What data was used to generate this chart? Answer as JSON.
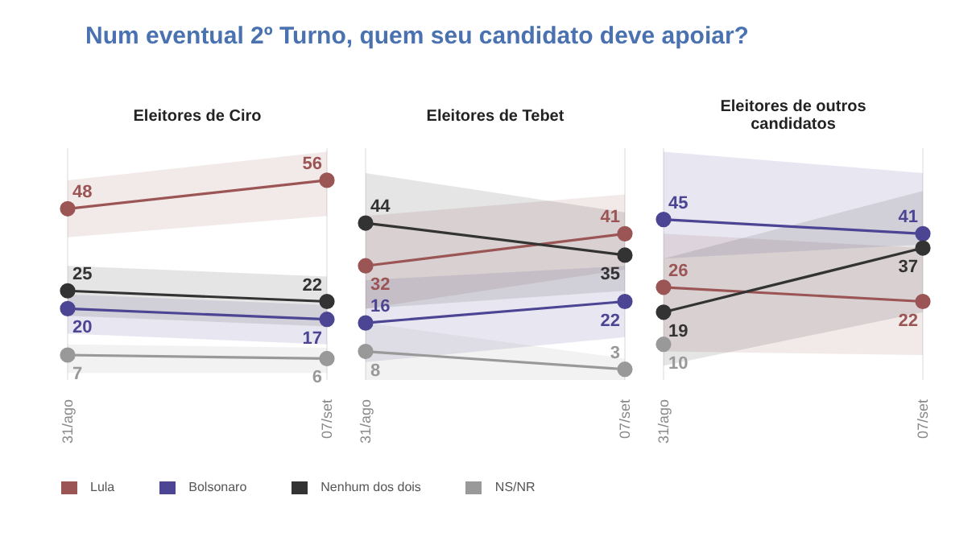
{
  "chart_data": [
    {
      "type": "line",
      "title": "Num eventual 2º Turno, quem seu candidato deve apoiar?",
      "subtitle": "Eleitores de Ciro",
      "categories": [
        "31/ago",
        "07/set"
      ],
      "ylim": [
        0,
        65
      ],
      "grid": "x",
      "marker": "circle",
      "data_labels": true,
      "legend": "bottom",
      "series": [
        {
          "name": "Lula",
          "color": "#9b5555",
          "values": [
            48,
            56
          ],
          "lower": [
            40,
            46
          ],
          "upper": [
            56,
            64
          ]
        },
        {
          "name": "Bolsonaro",
          "color": "#4b4593",
          "values": [
            20,
            17
          ],
          "lower": [
            13,
            10
          ],
          "upper": [
            24,
            21
          ]
        },
        {
          "name": "Nenhum dos dois",
          "color": "#333333",
          "values": [
            25,
            22
          ],
          "lower": [
            18,
            15
          ],
          "upper": [
            32,
            29
          ]
        },
        {
          "name": "NS/NR",
          "color": "#999999",
          "values": [
            7,
            6
          ],
          "lower": [
            2,
            2
          ],
          "upper": [
            10,
            9
          ]
        }
      ]
    },
    {
      "type": "line",
      "subtitle": "Eleitores de Tebet",
      "categories": [
        "31/ago",
        "07/set"
      ],
      "ylim": [
        0,
        65
      ],
      "grid": "x",
      "marker": "circle",
      "data_labels": true,
      "series": [
        {
          "color": "#9b5555",
          "values": [
            32,
            41
          ],
          "lower": [
            20,
            31
          ],
          "upper": [
            46,
            52
          ]
        },
        {
          "color": "#4b4593",
          "values": [
            16,
            22
          ],
          "lower": [
            5,
            12
          ],
          "upper": [
            28,
            32
          ]
        },
        {
          "color": "#333333",
          "values": [
            44,
            35
          ],
          "lower": [
            20,
            25
          ],
          "upper": [
            58,
            47
          ]
        },
        {
          "color": "#999999",
          "values": [
            8,
            3
          ],
          "lower": [
            0,
            0
          ],
          "upper": [
            16,
            6
          ]
        }
      ]
    },
    {
      "type": "line",
      "subtitle": "Eleitores de outros candidatos",
      "categories": [
        "31/ago",
        "07/set"
      ],
      "ylim": [
        0,
        65
      ],
      "grid": "x",
      "marker": "circle",
      "data_labels": true,
      "series": [
        {
          "color": "#9b5555",
          "values": [
            26,
            22
          ],
          "lower": [
            8,
            7
          ],
          "upper": [
            41,
            37
          ]
        },
        {
          "color": "#4b4593",
          "values": [
            45,
            41
          ],
          "lower": [
            34,
            38
          ],
          "upper": [
            64,
            58
          ]
        },
        {
          "color": "#333333",
          "values": [
            19,
            37
          ],
          "lower": [
            4,
            19
          ],
          "upper": [
            34,
            53
          ]
        },
        {
          "color": "#999999",
          "values": [
            10,
            null
          ]
        }
      ]
    }
  ]
}
